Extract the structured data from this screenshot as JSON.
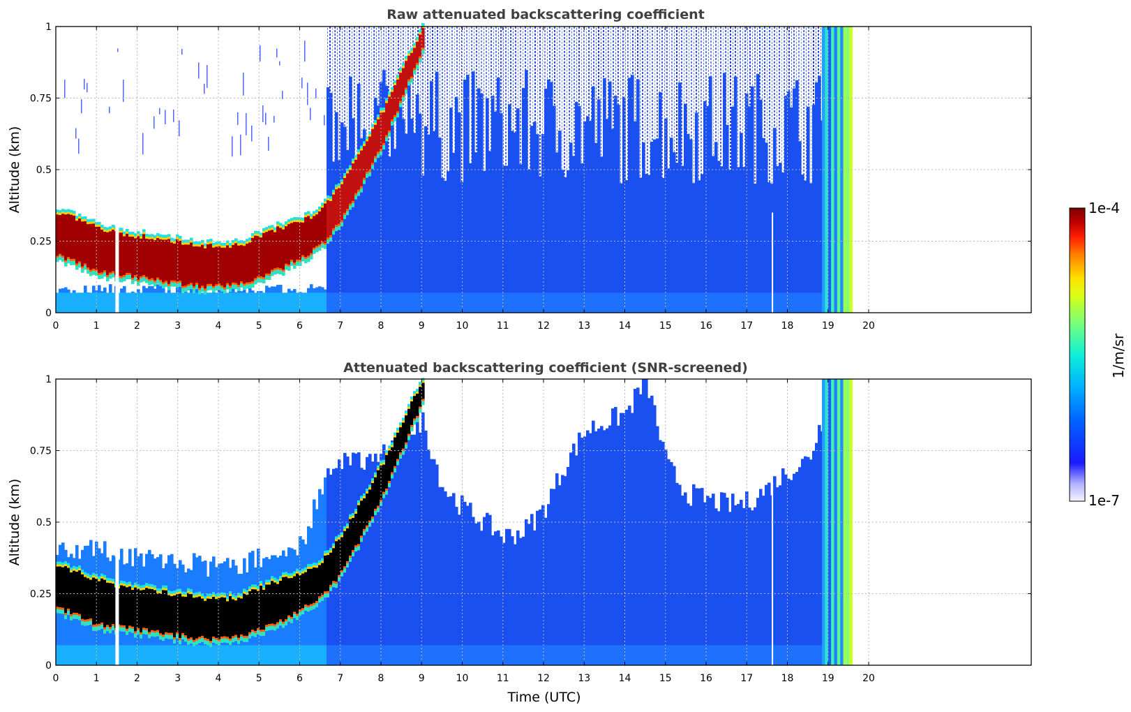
{
  "chart_data": [
    {
      "type": "heatmap",
      "title": "Raw attenuated backscattering coefficient",
      "xlabel": "",
      "ylabel": "Altitude (km)",
      "xlim": [
        0,
        24
      ],
      "ylim": [
        0,
        1
      ],
      "x_ticks": [
        0,
        1,
        2,
        3,
        4,
        5,
        6,
        7,
        8,
        9,
        10,
        11,
        12,
        13,
        14,
        15,
        16,
        17,
        18,
        19,
        20
      ],
      "y_ticks": [
        0,
        0.25,
        0.5,
        0.75,
        1
      ],
      "y_tick_labels": [
        "0",
        "0.25",
        "0.5",
        "0.75",
        "1"
      ],
      "grid": true,
      "data_end_hour": 19.6,
      "gaps_hour": [
        1.5,
        17.65
      ],
      "layer": {
        "hours": [
          0,
          0.5,
          1,
          1.5,
          2,
          2.5,
          3,
          3.5,
          4,
          4.5,
          5,
          5.5,
          6,
          6.5,
          7,
          7.5,
          8,
          8.5,
          9
        ],
        "top_km": [
          0.35,
          0.33,
          0.3,
          0.28,
          0.27,
          0.26,
          0.25,
          0.24,
          0.23,
          0.24,
          0.27,
          0.3,
          0.32,
          0.36,
          0.45,
          0.58,
          0.7,
          0.85,
          1.0
        ],
        "bottom_km": [
          0.2,
          0.17,
          0.14,
          0.13,
          0.12,
          0.11,
          0.1,
          0.09,
          0.09,
          0.1,
          0.12,
          0.15,
          0.19,
          0.23,
          0.32,
          0.45,
          0.58,
          0.75,
          0.92
        ]
      }
    },
    {
      "type": "heatmap",
      "title": "Attenuated backscattering coefficient (SNR-screened)",
      "xlabel": "Time (UTC)",
      "ylabel": "Altitude (km)",
      "xlim": [
        0,
        24
      ],
      "ylim": [
        0,
        1
      ],
      "x_ticks": [
        0,
        1,
        2,
        3,
        4,
        5,
        6,
        7,
        8,
        9,
        10,
        11,
        12,
        13,
        14,
        15,
        16,
        17,
        18,
        19,
        20
      ],
      "y_ticks": [
        0,
        0.25,
        0.5,
        0.75,
        1
      ],
      "y_tick_labels": [
        "0",
        "0.25",
        "0.5",
        "0.75",
        "1"
      ],
      "grid": true,
      "data_end_hour": 19.6,
      "gaps_hour": [
        1.5,
        17.65
      ],
      "screen_top": {
        "hours": [
          0,
          1,
          2,
          3,
          4,
          5,
          6,
          6.6,
          7,
          7.5,
          8,
          8.5,
          9,
          9.5,
          10,
          10.5,
          11,
          11.5,
          12,
          12.5,
          13,
          13.5,
          14,
          14.5,
          15,
          15.5,
          16,
          16.5,
          17,
          17.5,
          18,
          18.5,
          18.8
        ],
        "top_km": [
          0.42,
          0.4,
          0.38,
          0.36,
          0.34,
          0.37,
          0.42,
          0.65,
          0.7,
          0.72,
          0.74,
          0.8,
          0.85,
          0.62,
          0.55,
          0.5,
          0.45,
          0.47,
          0.55,
          0.7,
          0.82,
          0.85,
          0.88,
          1.0,
          0.7,
          0.6,
          0.58,
          0.56,
          0.57,
          0.62,
          0.68,
          0.72,
          0.85
        ]
      }
    }
  ],
  "colorbar": {
    "label": "1/m/sr",
    "max_label": "1e-4",
    "min_label": "1e-7",
    "scale": "log",
    "colors": [
      "#f0f0ff",
      "#c8c8ff",
      "#8c8cff",
      "#2020ff",
      "#0040ff",
      "#0080ff",
      "#00c0ff",
      "#20f0d0",
      "#70ff80",
      "#c0ff20",
      "#ffff00",
      "#ffb000",
      "#ff6000",
      "#ff1000",
      "#c00000",
      "#800000"
    ]
  }
}
